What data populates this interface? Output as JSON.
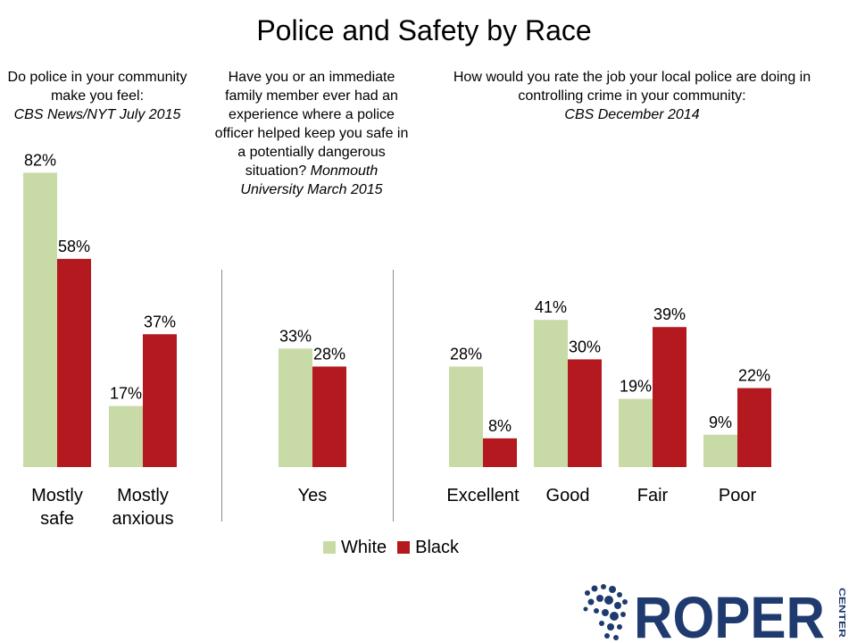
{
  "title": "Police and Safety by Race",
  "questions": [
    {
      "text": "Do police in your community make you feel:",
      "source": "CBS News/NYT July 2015"
    },
    {
      "text": "Have you or an immediate family member ever had an experience where a police officer helped keep you safe in a potentially dangerous situation?",
      "source": "Monmouth University March 2015"
    },
    {
      "text": "How would you rate the job your local police are doing in controlling crime in your community:",
      "source": "CBS December 2014"
    }
  ],
  "legend": [
    {
      "label": "White",
      "color": "#c8dba6"
    },
    {
      "label": "Black",
      "color": "#b3191e"
    }
  ],
  "chart_data": [
    {
      "type": "bar",
      "categories": [
        [
          "Mostly",
          "safe"
        ],
        [
          "Mostly",
          "anxious"
        ]
      ],
      "series": [
        {
          "name": "White",
          "values": [
            82,
            17
          ],
          "labels": [
            "82%",
            "17%"
          ]
        },
        {
          "name": "Black",
          "values": [
            58,
            37
          ],
          "labels": [
            "58%",
            "37%"
          ]
        }
      ]
    },
    {
      "type": "bar",
      "categories": [
        [
          "Yes"
        ]
      ],
      "series": [
        {
          "name": "White",
          "values": [
            33
          ],
          "labels": [
            "33%"
          ]
        },
        {
          "name": "Black",
          "values": [
            28
          ],
          "labels": [
            "28%"
          ]
        }
      ]
    },
    {
      "type": "bar",
      "categories": [
        [
          "Excellent"
        ],
        [
          "Good"
        ],
        [
          "Fair"
        ],
        [
          "Poor"
        ]
      ],
      "series": [
        {
          "name": "White",
          "values": [
            28,
            41,
            19,
            9
          ],
          "labels": [
            "28%",
            "41%",
            "19%",
            "9%"
          ]
        },
        {
          "name": "Black",
          "values": [
            8,
            30,
            39,
            22
          ],
          "labels": [
            "8%",
            "30%",
            "39%",
            "22%"
          ]
        }
      ]
    }
  ],
  "logo": {
    "name": "ROPER",
    "sub": "CENTER",
    "color": "#1f3a6e"
  }
}
